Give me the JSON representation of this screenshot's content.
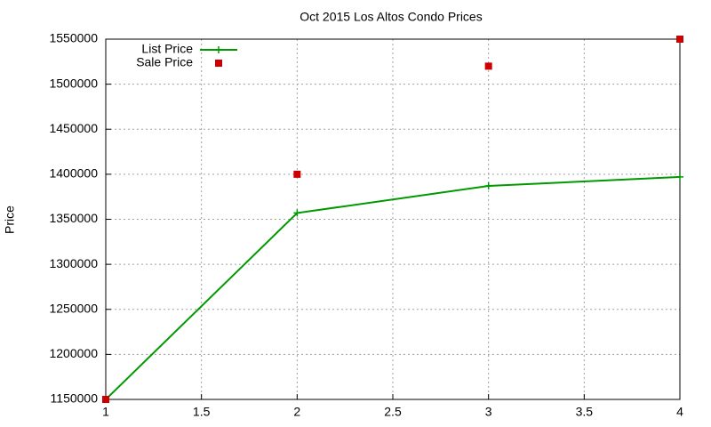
{
  "chart_data": {
    "type": "line",
    "title": "Oct 2015 Los Altos Condo Prices",
    "y_label": "Price",
    "x": [
      1,
      2,
      3,
      4
    ],
    "series": [
      {
        "name": "List Price",
        "color": "#009900",
        "mode": "lines+points",
        "values": [
          1150000,
          1357000,
          1387000,
          1397000
        ]
      },
      {
        "name": "Sale Price",
        "color": "#cc0000",
        "mode": "points",
        "values": [
          1150000,
          1400000,
          1520000,
          1550000
        ]
      }
    ],
    "xlim": [
      1,
      4
    ],
    "xticks": [
      1,
      1.5,
      2,
      2.5,
      3,
      3.5,
      4
    ],
    "ylim": [
      1150000,
      1550000
    ],
    "yticks": [
      1150000,
      1200000,
      1250000,
      1300000,
      1350000,
      1400000,
      1450000,
      1500000,
      1550000
    ],
    "grid": true,
    "legend": "top-left"
  }
}
